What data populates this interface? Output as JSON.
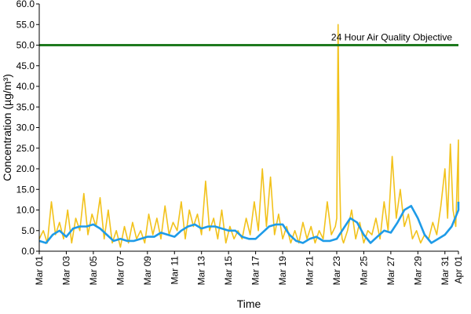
{
  "chart_data": {
    "type": "line",
    "title": "",
    "xlabel": "Time",
    "ylabel": "Concentration (µg/m³)",
    "ylim": [
      0,
      60
    ],
    "yticks": [
      "0.0",
      "5.0",
      "10.0",
      "15.0",
      "20.0",
      "25.0",
      "30.0",
      "35.0",
      "40.0",
      "45.0",
      "50.0",
      "55.0",
      "60.0"
    ],
    "xlim": [
      "Mar 01",
      "Apr 01"
    ],
    "xticks": [
      "Mar 01",
      "Mar 03",
      "Mar 05",
      "Mar 07",
      "Mar 09",
      "Mar 11",
      "Mar 13",
      "Mar 15",
      "Mar 17",
      "Mar 19",
      "Mar 21",
      "Mar 23",
      "Mar 25",
      "Mar 27",
      "Mar 29",
      "Mar 31",
      "Apr 01"
    ],
    "grid": false,
    "annotation": {
      "label": "24 Hour Air Quality Objective",
      "value": 50,
      "color": "#1f7a1f"
    },
    "series": [
      {
        "name": "",
        "style": "hourly",
        "color": "#f2c21b",
        "x": [
          0,
          0.3,
          0.6,
          0.9,
          1.2,
          1.5,
          1.8,
          2.1,
          2.4,
          2.7,
          3.0,
          3.3,
          3.6,
          3.9,
          4.2,
          4.5,
          4.8,
          5.1,
          5.4,
          5.7,
          6.0,
          6.3,
          6.6,
          6.9,
          7.2,
          7.5,
          7.8,
          8.1,
          8.4,
          8.7,
          9.0,
          9.3,
          9.6,
          9.9,
          10.2,
          10.5,
          10.8,
          11.1,
          11.4,
          11.7,
          12.0,
          12.3,
          12.6,
          12.9,
          13.2,
          13.5,
          13.8,
          14.1,
          14.4,
          14.7,
          15.0,
          15.3,
          15.6,
          15.9,
          16.2,
          16.5,
          16.8,
          17.1,
          17.4,
          17.7,
          18.0,
          18.3,
          18.6,
          18.9,
          19.2,
          19.5,
          19.8,
          20.1,
          20.4,
          20.7,
          21.0,
          21.3,
          21.6,
          21.9,
          22.0,
          22.1,
          22.2,
          22.3,
          22.4,
          22.5,
          22.8,
          23.1,
          23.4,
          23.7,
          24.0,
          24.3,
          24.6,
          24.9,
          25.2,
          25.5,
          25.8,
          26.1,
          26.4,
          26.7,
          27.0,
          27.3,
          27.6,
          27.9,
          28.2,
          28.5,
          28.8,
          29.1,
          29.4,
          29.7,
          30.0,
          30.2,
          30.4,
          30.6,
          30.8,
          31.0,
          31.2
        ],
        "y": [
          3,
          5,
          2,
          12,
          4,
          7,
          3,
          10,
          2,
          8,
          5,
          14,
          4,
          9,
          6,
          13,
          3,
          10,
          2,
          5,
          1,
          6,
          2,
          7,
          3,
          5,
          2,
          9,
          4,
          8,
          3,
          11,
          4,
          7,
          5,
          12,
          3,
          10,
          6,
          9,
          4,
          17,
          5,
          8,
          3,
          10,
          2,
          6,
          3,
          5,
          3,
          8,
          4,
          12,
          5,
          20,
          6,
          18,
          4,
          9,
          3,
          6,
          2,
          5,
          2,
          7,
          3,
          6,
          2,
          5,
          3,
          12,
          4,
          6,
          8,
          55,
          20,
          6,
          3,
          2,
          5,
          10,
          3,
          7,
          2,
          5,
          4,
          8,
          3,
          12,
          5,
          23,
          8,
          15,
          6,
          9,
          3,
          5,
          2,
          4,
          3,
          7,
          4,
          11,
          20,
          8,
          26,
          10,
          6,
          27,
          12
        ]
      },
      {
        "name": "",
        "style": "rolling",
        "color": "#1e9be8",
        "x": [
          0,
          0.5,
          1,
          1.5,
          2,
          2.5,
          3,
          3.5,
          4,
          4.5,
          5,
          5.5,
          6,
          6.5,
          7,
          7.5,
          8,
          8.5,
          9,
          9.5,
          10,
          10.5,
          11,
          11.5,
          12,
          12.5,
          13,
          13.5,
          14,
          14.5,
          15,
          15.5,
          16,
          16.5,
          17,
          17.5,
          18,
          18.5,
          19,
          19.5,
          20,
          20.5,
          21,
          21.5,
          22,
          22.5,
          23,
          23.5,
          24,
          24.5,
          25,
          25.5,
          26,
          26.5,
          27,
          27.5,
          28,
          28.5,
          29,
          29.5,
          30,
          30.5,
          31,
          31.2
        ],
        "y": [
          2.5,
          2,
          4,
          5,
          3.5,
          5.5,
          6,
          6,
          6.5,
          5.5,
          4,
          2.5,
          3,
          2.5,
          2.5,
          3,
          3.5,
          3.5,
          4.5,
          4,
          3.5,
          5,
          6,
          6.5,
          5.5,
          6,
          6,
          5.5,
          5,
          5,
          3.5,
          3,
          3,
          4.5,
          6,
          6.5,
          6.5,
          4,
          2.5,
          2,
          3,
          3.5,
          2.5,
          2.5,
          3,
          5.5,
          8,
          7,
          4,
          2,
          3.5,
          5,
          4.5,
          7,
          10,
          11,
          8,
          4,
          2,
          3,
          4,
          6,
          10,
          12
        ]
      }
    ]
  }
}
